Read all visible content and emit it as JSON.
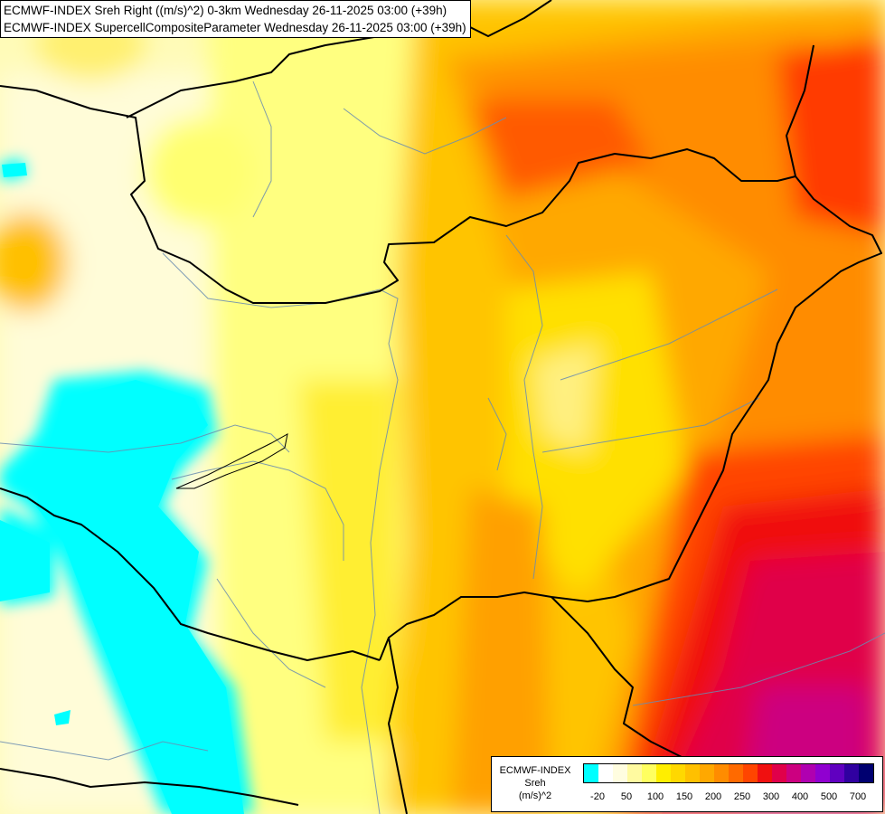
{
  "titles": {
    "line1": "ECMWF-INDEX Sreh Right ((m/s)^2) 0-3km Wednesday 26-11-2025 03:00 (+39h)",
    "line2": "ECMWF-INDEX SupercellCompositeParameter Wednesday 26-11-2025 03:00 (+39h)"
  },
  "legend": {
    "caption_1": "ECMWF-INDEX",
    "caption_2": "Sreh",
    "caption_3": "(m/s)^2",
    "colors": [
      "#00ffff",
      "#ffffff",
      "#fffde0",
      "#fffaa0",
      "#ffff60",
      "#ffee00",
      "#ffd800",
      "#ffc000",
      "#ffa800",
      "#ff8c00",
      "#ff6a00",
      "#ff4500",
      "#f01010",
      "#e0004a",
      "#cc0080",
      "#b000b0",
      "#9000d0",
      "#6000c0",
      "#3000a0",
      "#000070"
    ],
    "ticks": [
      "-20",
      "50",
      "100",
      "150",
      "200",
      "250",
      "300",
      "400",
      "500",
      "700"
    ]
  }
}
